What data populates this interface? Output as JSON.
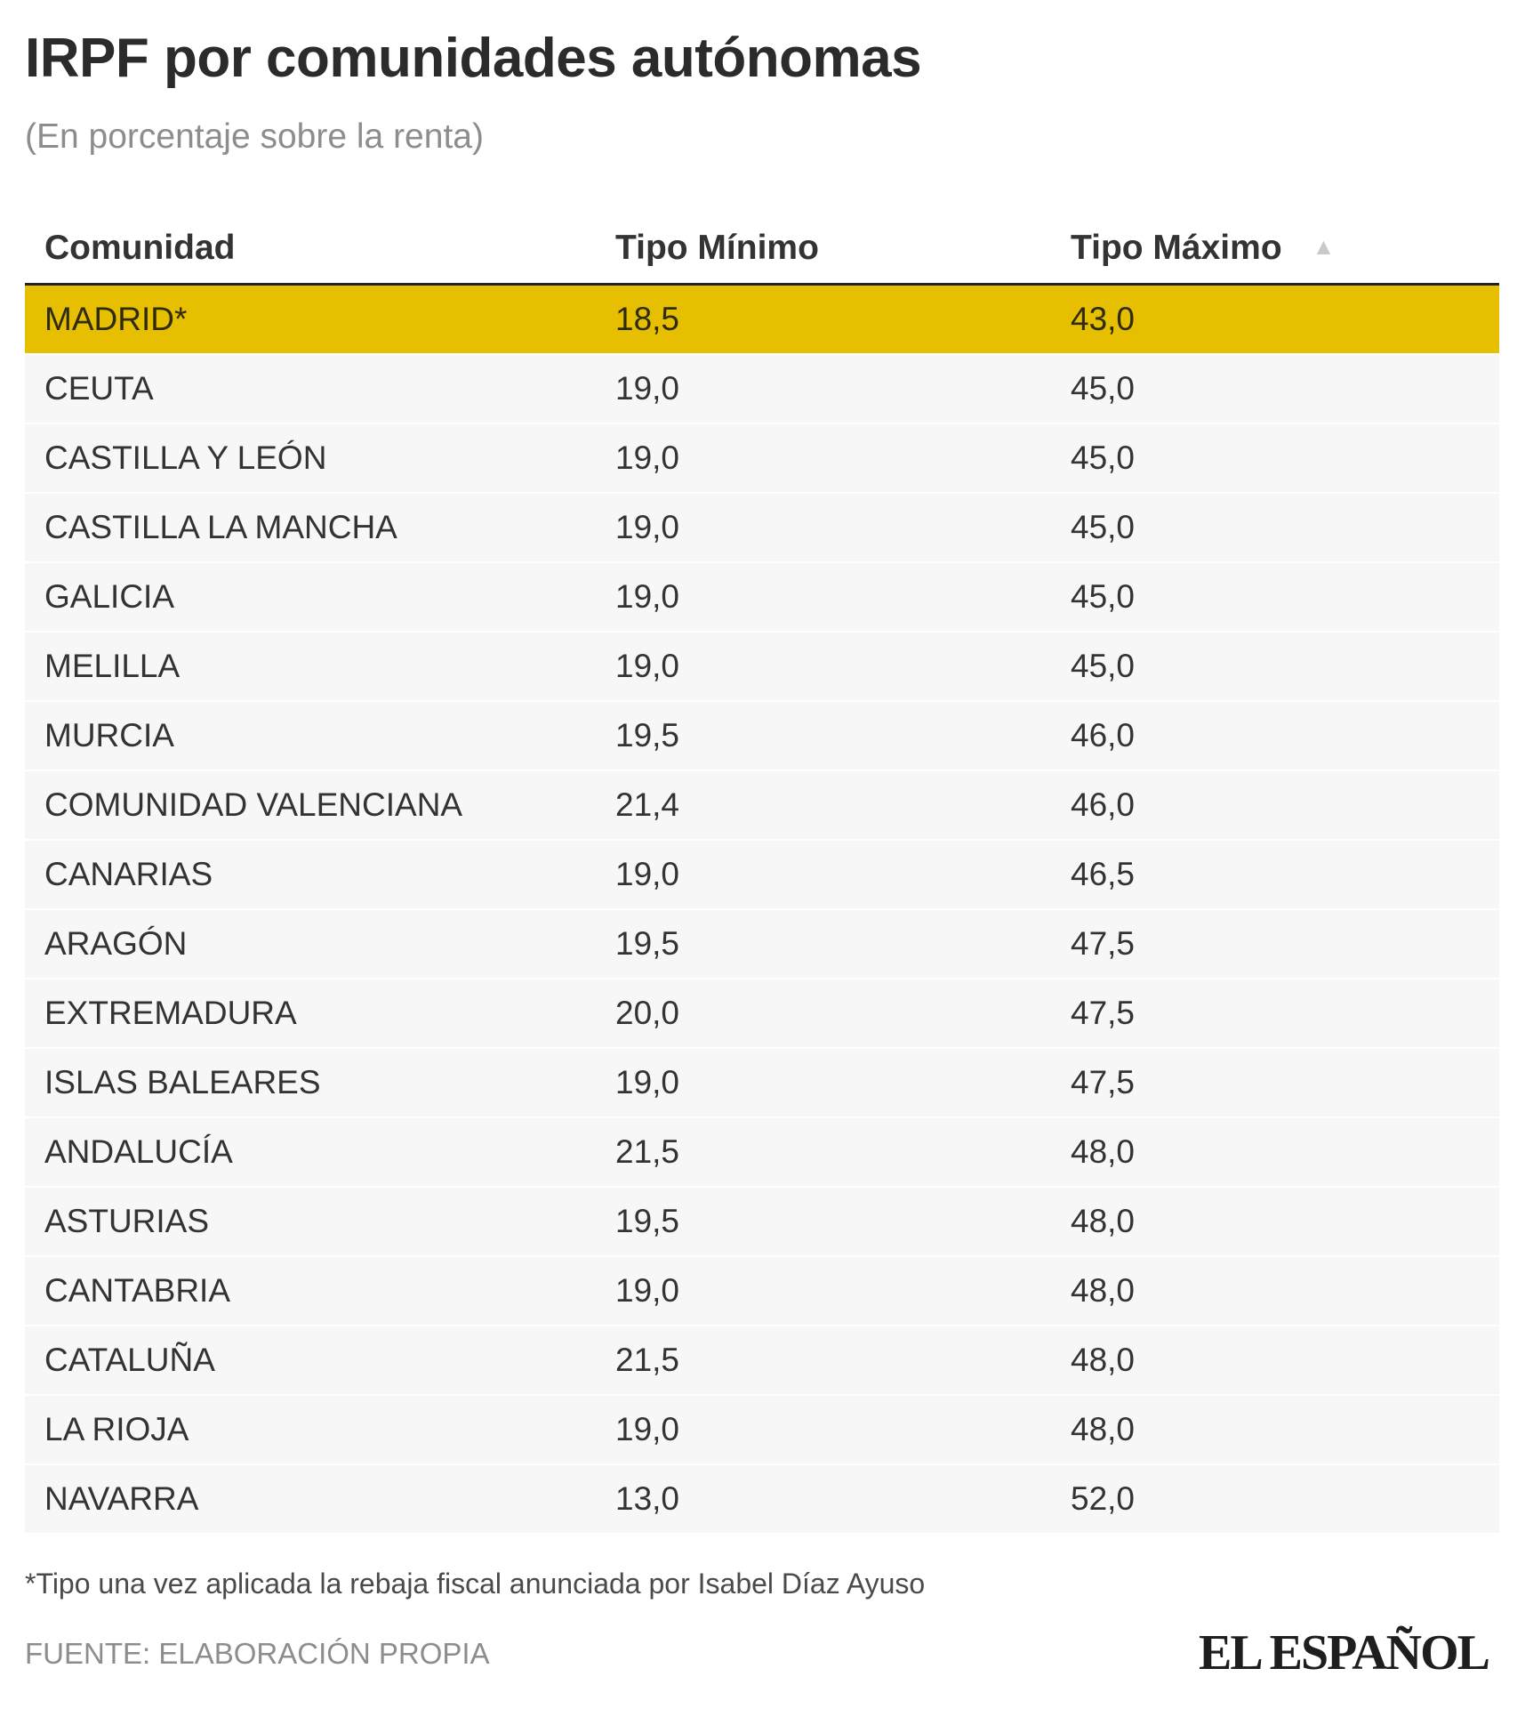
{
  "title": "IRPF por comunidades autónomas",
  "subtitle": "(En porcentaje sobre la renta)",
  "table": {
    "headers": [
      "Comunidad",
      "Tipo Mínimo",
      "Tipo Máximo"
    ],
    "sort_icon": "sort-ascending-icon",
    "highlight_color": "#e6bf00",
    "highlighted_row": "MADRID*"
  },
  "chart_data": {
    "type": "table",
    "title": "IRPF por comunidades autónomas",
    "subtitle": "(En porcentaje sobre la renta)",
    "columns": [
      "Comunidad",
      "Tipo Mínimo",
      "Tipo Máximo"
    ],
    "sorted_by": "Tipo Máximo",
    "sort_direction": "ascending",
    "rows": [
      [
        "MADRID*",
        "18,5",
        "43,0"
      ],
      [
        "CEUTA",
        "19,0",
        "45,0"
      ],
      [
        "CASTILLA Y LEÓN",
        "19,0",
        "45,0"
      ],
      [
        "CASTILLA LA MANCHA",
        "19,0",
        "45,0"
      ],
      [
        "GALICIA",
        "19,0",
        "45,0"
      ],
      [
        "MELILLA",
        "19,0",
        "45,0"
      ],
      [
        "MURCIA",
        "19,5",
        "46,0"
      ],
      [
        "COMUNIDAD VALENCIANA",
        "21,4",
        "46,0"
      ],
      [
        "CANARIAS",
        "19,0",
        "46,5"
      ],
      [
        "ARAGÓN",
        "19,5",
        "47,5"
      ],
      [
        "EXTREMADURA",
        "20,0",
        "47,5"
      ],
      [
        "ISLAS BALEARES",
        "19,0",
        "47,5"
      ],
      [
        "ANDALUCÍA",
        "21,5",
        "48,0"
      ],
      [
        "ASTURIAS",
        "19,5",
        "48,0"
      ],
      [
        "CANTABRIA",
        "19,0",
        "48,0"
      ],
      [
        "CATALUÑA",
        "21,5",
        "48,0"
      ],
      [
        "LA RIOJA",
        "19,0",
        "48,0"
      ],
      [
        "NAVARRA",
        "13,0",
        "52,0"
      ]
    ]
  },
  "footnote": "*Tipo una vez aplicada la rebaja fiscal anunciada por Isabel Díaz Ayuso",
  "source": "FUENTE: ELABORACIÓN PROPIA",
  "logo": "EL ESPAÑOL"
}
